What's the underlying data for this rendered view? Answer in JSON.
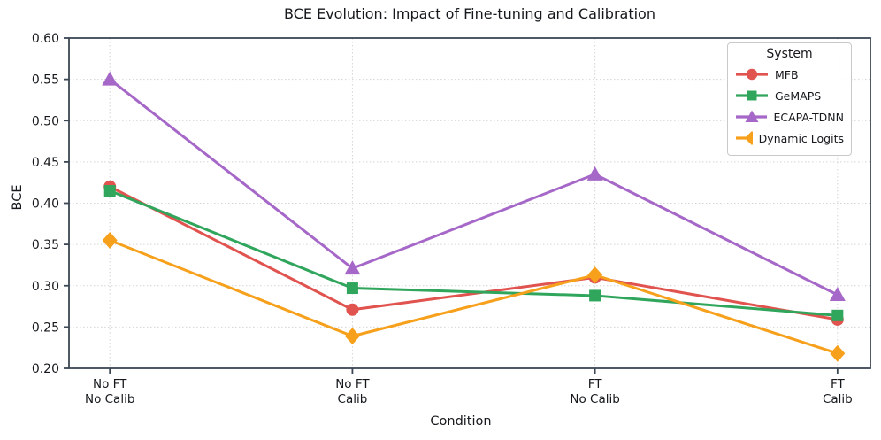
{
  "title": "BCE Evolution: Impact of Fine-tuning and Calibration",
  "chart_data": {
    "type": "line",
    "title": "BCE Evolution: Impact of Fine-tuning and Calibration",
    "xlabel": "Condition",
    "ylabel": "BCE",
    "categories": [
      "No FT\nNo Calib",
      "No FT\nCalib",
      "FT\nNo Calib",
      "FT\nCalib"
    ],
    "ylim": [
      0.2,
      0.6
    ],
    "yticks": [
      0.2,
      0.25,
      0.3,
      0.35,
      0.4,
      0.45,
      0.5,
      0.55,
      0.6
    ],
    "grid": true,
    "legend": {
      "title": "System",
      "position": "upper right"
    },
    "series": [
      {
        "name": "MFB",
        "marker": "circle",
        "color": "#e0534e",
        "values": [
          0.42,
          0.271,
          0.31,
          0.259
        ]
      },
      {
        "name": "GeMAPS",
        "marker": "square",
        "color": "#30a55c",
        "values": [
          0.415,
          0.297,
          0.288,
          0.264
        ]
      },
      {
        "name": "ECAPA-TDNN",
        "marker": "triangle",
        "color": "#a668c8",
        "values": [
          0.55,
          0.321,
          0.435,
          0.289
        ]
      },
      {
        "name": "Dynamic Logits",
        "marker": "diamond",
        "color": "#f6a01b",
        "values": [
          0.355,
          0.239,
          0.313,
          0.218
        ]
      }
    ],
    "style": {
      "spine_color": "#3b4754",
      "grid_color": "#d4d4d4",
      "text_color": "#15181c"
    }
  }
}
